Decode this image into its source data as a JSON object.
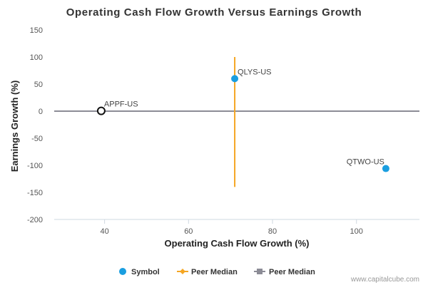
{
  "chart_data": {
    "type": "scatter",
    "title": "Operating Cash Flow Growth Versus Earnings Growth",
    "xlabel": "Operating Cash Flow Growth (%)",
    "ylabel": "Earnings Growth (%)",
    "xlim": [
      28,
      115
    ],
    "ylim": [
      -200,
      150
    ],
    "x_ticks": [
      40,
      60,
      80,
      100
    ],
    "y_ticks": [
      150,
      100,
      50,
      0,
      -50,
      -100,
      -150,
      -200
    ],
    "grid": false,
    "legend_position": "bottom",
    "points": [
      {
        "label": "APPF-US",
        "x": 39.2,
        "y": 0.5,
        "highlighted": true
      },
      {
        "label": "QLYS-US",
        "x": 71.0,
        "y": 60.0,
        "highlighted": false
      },
      {
        "label": "QTWO-US",
        "x": 107.0,
        "y": -106.0,
        "highlighted": false
      }
    ],
    "peer_median_x": 71.0,
    "peer_median_x_range": [
      -140,
      100
    ],
    "peer_median_y": 0,
    "colors": {
      "symbol": "#1a9ee0",
      "peer_median_x": "#f5a623",
      "peer_median_y": "#8c8c96",
      "highlight_stroke": "#111111"
    },
    "legend": [
      {
        "label": "Symbol",
        "kind": "symbol"
      },
      {
        "label": "Peer Median",
        "kind": "peer-median-vertical"
      },
      {
        "label": "Peer Median",
        "kind": "peer-median-horizontal"
      }
    ]
  },
  "credit": "www.capitalcube.com"
}
